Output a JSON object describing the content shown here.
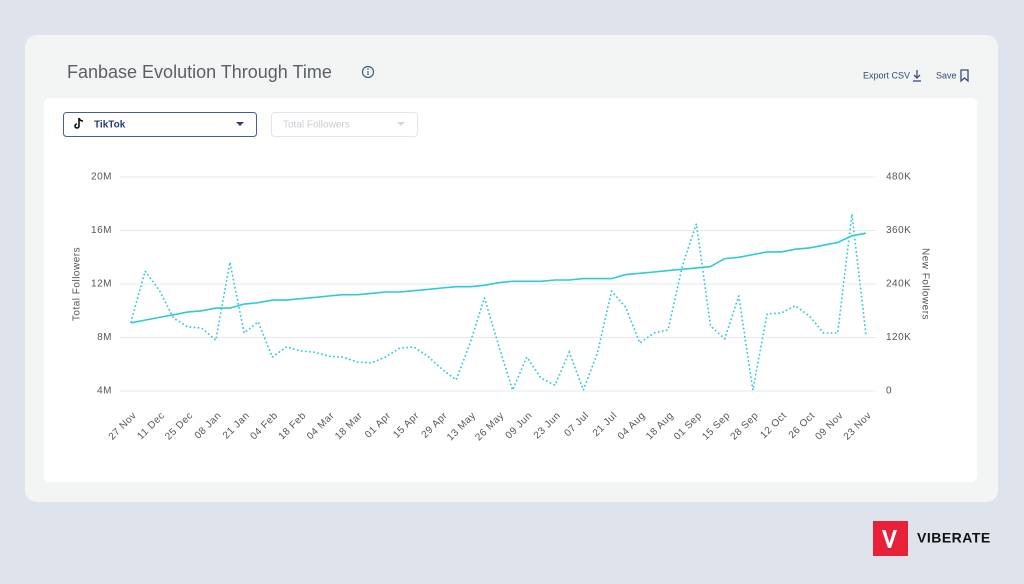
{
  "ui": {
    "title": "Fanbase Evolution Through Time",
    "export": "Export CSV",
    "save": "Save",
    "platform": "TikTok",
    "metric": "Total Followers",
    "brand": "VIBERATE"
  },
  "chart_data": {
    "type": "line",
    "categories": [
      "27 Nov",
      null,
      "11 Dec",
      null,
      "25 Dec",
      null,
      "08 Jan",
      null,
      "21 Jan",
      null,
      "04 Feb",
      null,
      "18 Feb",
      null,
      "04 Mar",
      null,
      "18 Mar",
      null,
      "01 Apr",
      null,
      "15 Apr",
      null,
      "29 Apr",
      null,
      "13 May",
      null,
      "26 May",
      null,
      "09 Jun",
      null,
      "23 Jun",
      null,
      "07 Jul",
      null,
      "21 Jul",
      null,
      "04 Aug",
      null,
      "18 Aug",
      null,
      "01 Sep",
      null,
      "15 Sep",
      null,
      "28 Sep",
      null,
      "12 Oct",
      null,
      "26 Oct",
      null,
      "09 Nov",
      null,
      "23 Nov"
    ],
    "y_label": "Total Followers",
    "y2_label": "New Followers",
    "series": [
      {
        "color": "#2fcad3",
        "style": "solid",
        "values": [
          9100000,
          9300000,
          9500000,
          9700000,
          9900000,
          10000000,
          10200000,
          10200000,
          10500000,
          10600000,
          10800000,
          10800000,
          10900000,
          11000000,
          11100000,
          11200000,
          11200000,
          11300000,
          11400000,
          11400000,
          11500000,
          11600000,
          11700000,
          11800000,
          11800000,
          11900000,
          12100000,
          12200000,
          12200000,
          12200000,
          12300000,
          12300000,
          12400000,
          12400000,
          12400000,
          12700000,
          12800000,
          12900000,
          13000000,
          13100000,
          13200000,
          13300000,
          13900000,
          14000000,
          14200000,
          14400000,
          14400000,
          14600000,
          14700000,
          14900000,
          15100000,
          15600000,
          15800000
        ]
      },
      {
        "color": "#2fcad3",
        "style": "dotted",
        "axis": "y2",
        "values": [
          155000,
          269000,
          226000,
          164000,
          144000,
          141000,
          114000,
          289000,
          130000,
          155000,
          76000,
          99000,
          90000,
          87000,
          78000,
          76000,
          65000,
          63000,
          76000,
          96000,
          99000,
          78000,
          49000,
          25000,
          108000,
          209000,
          103000,
          2000,
          76000,
          29000,
          13000,
          87000,
          2000,
          85000,
          224000,
          188000,
          108000,
          130000,
          137000,
          280000,
          375000,
          146000,
          117000,
          213000,
          2000,
          173000,
          175000,
          191000,
          168000,
          130000,
          130000,
          397000,
          126000
        ]
      }
    ],
    "ylim": [
      4000000,
      20000000
    ],
    "yticks": [
      {
        "value": 4000000,
        "label": "4M"
      },
      {
        "value": 8000000,
        "label": "8M"
      },
      {
        "value": 12000000,
        "label": "12M"
      },
      {
        "value": 16000000,
        "label": "16M"
      },
      {
        "value": 20000000,
        "label": "20M"
      }
    ],
    "y2lim": [
      0,
      480000
    ],
    "y2ticks": [
      0,
      {
        "value": 120000,
        "label": "120K"
      },
      {
        "value": 240000,
        "label": "240K"
      },
      {
        "value": 360000,
        "label": "360K"
      },
      {
        "value": 480000,
        "label": "480K"
      }
    ],
    "grid": true
  }
}
